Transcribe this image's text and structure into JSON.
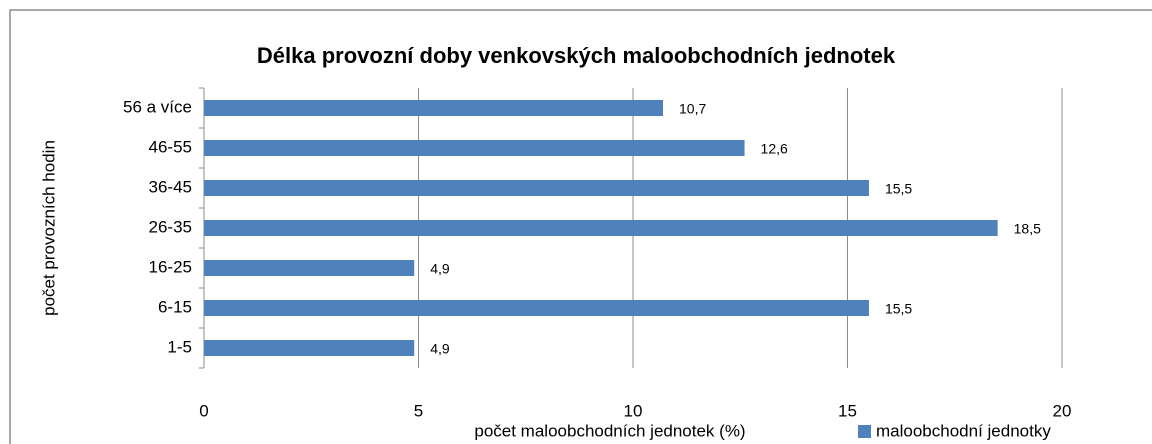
{
  "chart_data": {
    "type": "bar",
    "orientation": "horizontal",
    "title": "Délka provozní doby venkovských maloobchodních jednotek",
    "x_label": "počet maloobchodních jednotek (%)",
    "y_label": "počet provozních hodin",
    "categories": [
      "1-5",
      "6-15",
      "16-25",
      "26-35",
      "36-45",
      "46-55",
      "56 a více"
    ],
    "series": [
      {
        "name": "maloobchodní jednotky",
        "color": "#4f81bd",
        "values": [
          4.9,
          15.5,
          4.9,
          18.5,
          15.5,
          12.6,
          10.7
        ],
        "value_labels": [
          "4,9",
          "15,5",
          "4,9",
          "18,5",
          "15,5",
          "12,6",
          "10,7"
        ]
      }
    ],
    "xlim": [
      0,
      20
    ],
    "xticks": [
      0,
      5,
      10,
      15,
      20
    ],
    "grid": true
  }
}
